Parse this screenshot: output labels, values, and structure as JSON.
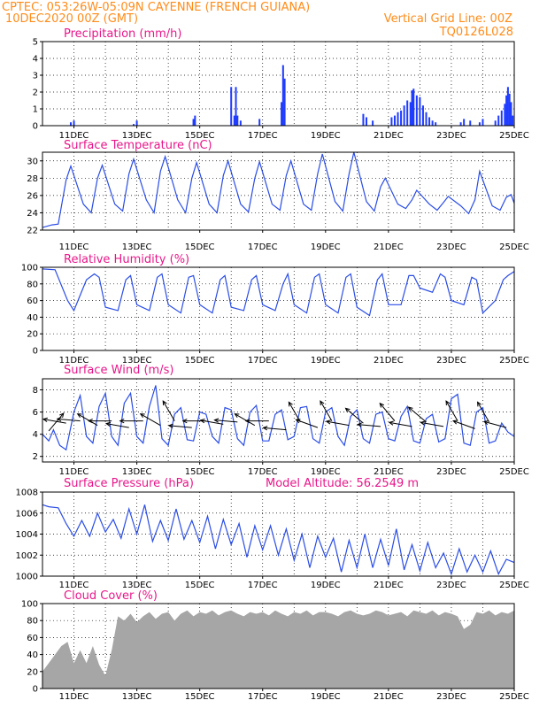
{
  "header": {
    "line1_left": "CPTEC:   053:26W-05:09N   CAYENNE (FRENCH GUIANA)",
    "line2_left": "10DEC2020 00Z (GMT)",
    "line2_right": "Vertical Grid Line: 00Z",
    "line3_right": "TQ0126L028"
  },
  "x_ticks": [
    "11DEC",
    "13DEC",
    "15DEC",
    "17DEC",
    "19DEC",
    "21DEC",
    "23DEC",
    "25DEC"
  ],
  "chart_data": [
    {
      "type": "bar",
      "title": "Precipitation (mm/h)",
      "x_range_days": [
        10,
        25
      ],
      "ylim": [
        0,
        5
      ],
      "yticks": [
        0,
        1,
        2,
        3,
        4,
        5
      ],
      "grid": true,
      "x": [
        10.9,
        11.0,
        12.9,
        13.0,
        14.8,
        14.85,
        16.0,
        16.1,
        16.15,
        16.2,
        16.3,
        16.9,
        17.6,
        17.65,
        17.7,
        20.2,
        20.3,
        20.5,
        21.1,
        21.2,
        21.3,
        21.4,
        21.5,
        21.6,
        21.7,
        21.75,
        21.8,
        21.9,
        22.0,
        22.1,
        22.2,
        22.3,
        22.4,
        22.5,
        23.3,
        23.4,
        23.6,
        23.9,
        24.0,
        24.4,
        24.5,
        24.6,
        24.7,
        24.75,
        24.8,
        24.85,
        24.9,
        24.95
      ],
      "values": [
        0.2,
        0.3,
        0.1,
        0.3,
        0.4,
        0.6,
        2.3,
        0.6,
        2.3,
        0.6,
        0.3,
        0.4,
        1.4,
        3.6,
        2.8,
        0.7,
        0.5,
        0.3,
        0.5,
        0.6,
        0.8,
        0.9,
        1.2,
        1.5,
        1.4,
        2.1,
        2.2,
        1.8,
        1.7,
        1.2,
        0.8,
        0.5,
        0.3,
        0.2,
        0.2,
        0.4,
        0.3,
        0.2,
        0.4,
        0.3,
        0.6,
        0.9,
        1.3,
        1.8,
        2.3,
        1.9,
        1.4,
        0.6
      ]
    },
    {
      "type": "line",
      "title": "Surface Temperature (nC)",
      "x_range_days": [
        10,
        25
      ],
      "ylim": [
        22,
        31
      ],
      "yticks": [
        22,
        24,
        26,
        28,
        30
      ],
      "grid": true,
      "x": [
        10.0,
        10.3,
        10.5,
        10.75,
        10.9,
        11.3,
        11.55,
        11.75,
        11.9,
        12.3,
        12.55,
        12.75,
        12.9,
        13.3,
        13.55,
        13.75,
        13.9,
        14.3,
        14.55,
        14.75,
        14.9,
        15.3,
        15.55,
        15.75,
        15.9,
        16.3,
        16.55,
        16.75,
        16.9,
        17.3,
        17.55,
        17.75,
        17.9,
        18.3,
        18.55,
        18.75,
        18.9,
        19.3,
        19.55,
        19.75,
        19.9,
        20.3,
        20.55,
        20.75,
        20.9,
        21.3,
        21.55,
        21.75,
        21.9,
        22.3,
        22.55,
        22.75,
        22.9,
        23.3,
        23.55,
        23.75,
        23.9,
        24.3,
        24.55,
        24.75,
        24.9,
        25.0
      ],
      "values": [
        22.3,
        22.6,
        22.7,
        27.8,
        29.4,
        25.0,
        24.0,
        28.0,
        29.5,
        25.0,
        24.2,
        28.5,
        30.2,
        25.5,
        24.0,
        28.8,
        30.5,
        25.5,
        24.0,
        28.0,
        29.8,
        25.0,
        24.0,
        28.3,
        30.0,
        25.0,
        24.1,
        28.0,
        29.9,
        25.0,
        24.3,
        28.3,
        30.0,
        25.0,
        24.3,
        28.5,
        30.8,
        25.3,
        24.2,
        28.5,
        31.0,
        25.3,
        24.2,
        27.0,
        28.0,
        25.0,
        24.5,
        25.5,
        26.6,
        25.0,
        24.3,
        25.2,
        25.9,
        24.8,
        23.9,
        25.5,
        28.8,
        24.8,
        24.3,
        25.8,
        26.1,
        25.1
      ]
    },
    {
      "type": "line",
      "title": "Relative Humidity (%)",
      "x_range_days": [
        10,
        25
      ],
      "ylim": [
        0,
        100
      ],
      "yticks": [
        0,
        20,
        40,
        60,
        80,
        100
      ],
      "grid": true,
      "x": [
        10.0,
        10.4,
        10.8,
        11.0,
        11.4,
        11.65,
        11.8,
        12.0,
        12.4,
        12.65,
        12.8,
        13.0,
        13.4,
        13.65,
        13.8,
        14.0,
        14.4,
        14.65,
        14.8,
        15.0,
        15.4,
        15.65,
        15.8,
        16.0,
        16.4,
        16.65,
        16.8,
        17.0,
        17.4,
        17.65,
        17.8,
        18.0,
        18.4,
        18.65,
        18.8,
        19.0,
        19.4,
        19.65,
        19.8,
        20.0,
        20.4,
        20.65,
        20.8,
        21.0,
        21.4,
        21.65,
        21.8,
        22.0,
        22.4,
        22.65,
        22.8,
        23.0,
        23.4,
        23.65,
        23.8,
        24.0,
        24.4,
        24.65,
        24.8,
        25.0
      ],
      "values": [
        98,
        97,
        60,
        48,
        85,
        92,
        88,
        52,
        48,
        85,
        90,
        55,
        48,
        88,
        92,
        55,
        45,
        88,
        90,
        55,
        45,
        85,
        90,
        52,
        48,
        85,
        90,
        55,
        48,
        80,
        92,
        55,
        45,
        88,
        92,
        55,
        45,
        88,
        92,
        52,
        42,
        85,
        92,
        55,
        55,
        90,
        90,
        75,
        70,
        92,
        88,
        60,
        55,
        88,
        85,
        45,
        60,
        85,
        90,
        95
      ]
    },
    {
      "type": "line",
      "title": "Surface Wind (m/s)",
      "x_range_days": [
        10,
        25
      ],
      "ylim": [
        1.5,
        9
      ],
      "yticks": [
        2,
        4,
        6,
        8
      ],
      "grid": true,
      "x": [
        10.0,
        10.2,
        10.35,
        10.55,
        10.75,
        11.0,
        11.2,
        11.4,
        11.6,
        11.8,
        12.0,
        12.2,
        12.4,
        12.6,
        12.8,
        13.0,
        13.2,
        13.4,
        13.6,
        13.8,
        14.0,
        14.2,
        14.4,
        14.6,
        14.8,
        15.0,
        15.2,
        15.4,
        15.6,
        15.8,
        16.0,
        16.2,
        16.4,
        16.6,
        16.8,
        17.0,
        17.2,
        17.4,
        17.6,
        17.8,
        18.0,
        18.2,
        18.4,
        18.6,
        18.8,
        19.0,
        19.2,
        19.4,
        19.6,
        19.8,
        20.0,
        20.2,
        20.4,
        20.6,
        20.8,
        21.0,
        21.2,
        21.4,
        21.6,
        21.8,
        22.0,
        22.2,
        22.4,
        22.6,
        22.8,
        23.0,
        23.2,
        23.4,
        23.6,
        23.8,
        24.0,
        24.2,
        24.4,
        24.6,
        24.8,
        25.0
      ],
      "values": [
        4.0,
        3.4,
        4.4,
        3.0,
        2.6,
        6.0,
        7.5,
        3.8,
        3.2,
        6.5,
        7.7,
        3.8,
        3.0,
        6.8,
        7.7,
        3.8,
        3.2,
        6.5,
        8.4,
        3.6,
        3.0,
        5.8,
        6.4,
        3.5,
        3.4,
        6.0,
        5.8,
        3.8,
        3.2,
        6.4,
        6.2,
        3.6,
        3.0,
        6.0,
        6.6,
        3.4,
        3.4,
        5.8,
        6.2,
        3.5,
        3.8,
        6.4,
        6.5,
        3.6,
        3.2,
        6.0,
        6.4,
        3.8,
        3.0,
        5.6,
        6.2,
        3.6,
        3.2,
        5.8,
        6.0,
        3.6,
        3.4,
        5.6,
        6.5,
        3.4,
        3.2,
        5.4,
        5.8,
        3.3,
        3.6,
        7.2,
        7.6,
        3.2,
        3.0,
        6.0,
        6.4,
        3.2,
        3.4,
        5.0,
        4.2,
        3.8
      ],
      "wind_arrows": {
        "x": [
          10.2,
          10.75,
          11.2,
          11.75,
          12.2,
          12.75,
          13.2,
          13.75,
          14.2,
          14.75,
          15.2,
          15.75,
          16.2,
          16.75,
          17.2,
          17.75,
          18.2,
          18.75,
          19.2,
          19.75,
          20.2,
          20.75,
          21.2,
          21.75,
          22.2,
          22.75,
          23.2,
          23.75,
          24.2,
          24.75
        ],
        "speed": [
          4.3,
          5.0,
          5.2,
          4.8,
          5.2,
          4.6,
          5.2,
          4.8,
          5.2,
          4.6,
          5.2,
          4.9,
          5.1,
          4.8,
          5.2,
          4.4,
          5.1,
          4.6,
          5.2,
          4.8,
          5.0,
          4.7,
          5.2,
          4.7,
          5.1,
          4.7,
          5.2,
          4.5,
          5.1,
          4.6
        ],
        "from_deg": [
          220,
          100,
          95,
          120,
          90,
          100,
          90,
          120,
          150,
          95,
          90,
          100,
          95,
          120,
          90,
          95,
          150,
          110,
          150,
          100,
          130,
          95,
          140,
          100,
          130,
          100,
          150,
          110,
          150,
          105
        ]
      }
    },
    {
      "type": "line",
      "title": "Surface Pressure (hPa)",
      "annotation": "Model Altitude: 56.2549  m",
      "x_range_days": [
        10,
        25
      ],
      "ylim": [
        1000,
        1008
      ],
      "yticks": [
        1000,
        1002,
        1004,
        1006,
        1008
      ],
      "grid": true,
      "x": [
        10.0,
        10.2,
        10.5,
        10.75,
        11.0,
        11.25,
        11.5,
        11.75,
        12.0,
        12.25,
        12.5,
        12.75,
        13.0,
        13.25,
        13.5,
        13.75,
        14.0,
        14.25,
        14.5,
        14.75,
        15.0,
        15.25,
        15.5,
        15.75,
        16.0,
        16.25,
        16.5,
        16.75,
        17.0,
        17.25,
        17.5,
        17.75,
        18.0,
        18.25,
        18.5,
        18.75,
        19.0,
        19.25,
        19.5,
        19.75,
        20.0,
        20.25,
        20.5,
        20.75,
        21.0,
        21.25,
        21.5,
        21.75,
        22.0,
        22.25,
        22.5,
        22.75,
        23.0,
        23.25,
        23.5,
        23.75,
        24.0,
        24.25,
        24.5,
        24.75,
        25.0
      ],
      "values": [
        1006.8,
        1006.6,
        1006.5,
        1005.0,
        1003.8,
        1005.3,
        1003.8,
        1006.0,
        1004.2,
        1005.4,
        1003.6,
        1006.4,
        1004.0,
        1006.8,
        1003.3,
        1005.3,
        1003.4,
        1006.4,
        1003.5,
        1005.3,
        1003.2,
        1005.7,
        1002.6,
        1005.4,
        1003.0,
        1005.0,
        1001.8,
        1004.8,
        1002.5,
        1004.8,
        1002.0,
        1004.5,
        1001.5,
        1004.0,
        1000.8,
        1003.8,
        1001.8,
        1003.6,
        1000.4,
        1003.4,
        1000.8,
        1004.0,
        1000.8,
        1003.5,
        1001.0,
        1004.5,
        1000.6,
        1003.0,
        1000.5,
        1003.2,
        1000.8,
        1002.2,
        1000.2,
        1002.6,
        1000.4,
        1002.0,
        1000.4,
        1002.4,
        1000.2,
        1001.6,
        1001.3
      ]
    },
    {
      "type": "area",
      "title": "Cloud Cover (%)",
      "x_range_days": [
        10,
        25
      ],
      "ylim": [
        0,
        100
      ],
      "yticks": [
        0,
        20,
        40,
        60,
        80,
        100
      ],
      "grid": true,
      "x": [
        10.0,
        10.2,
        10.4,
        10.6,
        10.8,
        11.0,
        11.2,
        11.4,
        11.6,
        11.8,
        12.0,
        12.2,
        12.4,
        12.6,
        12.8,
        13.0,
        13.2,
        13.4,
        13.6,
        13.8,
        14.0,
        14.2,
        14.4,
        14.6,
        14.8,
        15.0,
        15.2,
        15.4,
        15.6,
        15.8,
        16.0,
        16.2,
        16.4,
        16.6,
        16.8,
        17.0,
        17.2,
        17.4,
        17.6,
        17.8,
        18.0,
        18.2,
        18.4,
        18.6,
        18.8,
        19.0,
        19.2,
        19.4,
        19.6,
        19.8,
        20.0,
        20.2,
        20.4,
        20.6,
        20.8,
        21.0,
        21.2,
        21.4,
        21.6,
        21.8,
        22.0,
        22.2,
        22.4,
        22.6,
        22.8,
        23.0,
        23.2,
        23.4,
        23.6,
        23.8,
        24.0,
        24.2,
        24.4,
        24.6,
        24.8,
        25.0
      ],
      "values": [
        20,
        30,
        40,
        50,
        55,
        30,
        45,
        30,
        50,
        28,
        15,
        45,
        85,
        80,
        88,
        78,
        85,
        90,
        82,
        88,
        90,
        80,
        88,
        92,
        85,
        90,
        88,
        92,
        86,
        90,
        92,
        88,
        85,
        90,
        88,
        90,
        86,
        92,
        88,
        85,
        90,
        88,
        92,
        86,
        90,
        90,
        88,
        85,
        90,
        92,
        88,
        86,
        88,
        92,
        90,
        86,
        88,
        90,
        85,
        92,
        90,
        88,
        92,
        86,
        90,
        88,
        85,
        70,
        75,
        90,
        88,
        92,
        86,
        90,
        88,
        92
      ]
    }
  ]
}
